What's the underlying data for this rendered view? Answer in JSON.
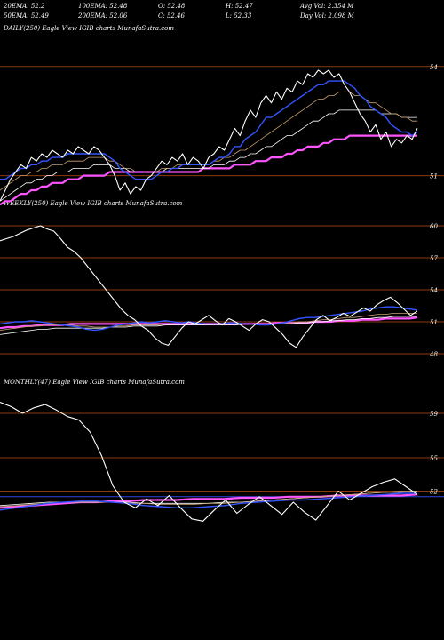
{
  "header": {
    "row1": [
      "20EMA: 52.2",
      "100EMA: 52.48",
      "O: 52.48",
      "H: 52.47",
      "Avg Vol: 2.354  M"
    ],
    "row2": [
      "50EMA: 52.49",
      "200EMA: 52.06",
      "C: 52.46",
      "L: 52.33",
      "Day Vol: 2.098  M"
    ]
  },
  "panels": {
    "daily_label": "DAILY(250) Eagle   View  IGIB charts MunafaSutra.com",
    "weekly_label": "WEEKLY(250) Eagle   View  IGIB charts MunafaSutra.com",
    "monthly_label": "MONTHLY(47) Eagle   View  IGIB charts MunafaSutra.com"
  },
  "colors": {
    "price": "#ffffff",
    "ema_fast": "#3355ff",
    "ema_mid": "#c8a070",
    "ema_slow": "#ffffff",
    "ema_long": "#ff55ff",
    "level_line": "#8b3a10",
    "level_line_blue": "#3344dd"
  },
  "chart_data": [
    {
      "type": "line",
      "name_hint": "daily",
      "ylim": [
        48.5,
        54.8
      ],
      "levels": [
        54,
        51
      ],
      "tick_labels": [
        {
          "value": 54,
          "label": "54"
        },
        {
          "value": 51,
          "label": "51"
        }
      ],
      "price": [
        50.3,
        50.6,
        50.9,
        51.1,
        51.3,
        51.2,
        51.5,
        51.4,
        51.6,
        51.5,
        51.7,
        51.6,
        51.5,
        51.7,
        51.6,
        51.8,
        51.7,
        51.6,
        51.8,
        51.7,
        51.5,
        51.3,
        51.0,
        50.6,
        50.8,
        50.5,
        50.7,
        50.6,
        50.9,
        51.0,
        51.2,
        51.4,
        51.3,
        51.5,
        51.4,
        51.6,
        51.3,
        51.5,
        51.4,
        51.2,
        51.5,
        51.6,
        51.8,
        51.7,
        52.0,
        52.3,
        52.1,
        52.5,
        52.8,
        52.6,
        53.0,
        53.2,
        53.0,
        53.3,
        53.1,
        53.4,
        53.3,
        53.6,
        53.5,
        53.8,
        53.7,
        53.9,
        53.8,
        53.9,
        53.7,
        53.8,
        53.5,
        53.3,
        53.0,
        52.7,
        52.5,
        52.2,
        52.4,
        52.0,
        52.2,
        51.8,
        52.0,
        51.9,
        52.1,
        52.0,
        52.3
      ],
      "ema_fast": [
        50.9,
        50.9,
        51.0,
        51.1,
        51.2,
        51.2,
        51.3,
        51.3,
        51.4,
        51.4,
        51.5,
        51.5,
        51.5,
        51.6,
        51.6,
        51.6,
        51.6,
        51.6,
        51.6,
        51.6,
        51.6,
        51.5,
        51.4,
        51.2,
        51.1,
        51.0,
        50.9,
        50.9,
        50.9,
        50.9,
        51.0,
        51.1,
        51.1,
        51.2,
        51.2,
        51.3,
        51.3,
        51.3,
        51.3,
        51.3,
        51.3,
        51.4,
        51.5,
        51.5,
        51.6,
        51.8,
        51.8,
        52.0,
        52.1,
        52.2,
        52.4,
        52.6,
        52.6,
        52.7,
        52.8,
        52.9,
        53.0,
        53.1,
        53.2,
        53.3,
        53.4,
        53.5,
        53.5,
        53.6,
        53.6,
        53.6,
        53.6,
        53.5,
        53.4,
        53.2,
        53.1,
        52.9,
        52.8,
        52.7,
        52.6,
        52.4,
        52.3,
        52.2,
        52.2,
        52.1,
        52.2
      ],
      "ema_mid": [
        50.6,
        50.7,
        50.8,
        50.9,
        51.0,
        51.0,
        51.1,
        51.1,
        51.2,
        51.2,
        51.3,
        51.3,
        51.3,
        51.4,
        51.4,
        51.4,
        51.4,
        51.5,
        51.5,
        51.5,
        51.5,
        51.4,
        51.4,
        51.3,
        51.2,
        51.2,
        51.1,
        51.1,
        51.1,
        51.1,
        51.1,
        51.2,
        51.2,
        51.2,
        51.3,
        51.3,
        51.3,
        51.3,
        51.3,
        51.3,
        51.3,
        51.4,
        51.4,
        51.5,
        51.5,
        51.6,
        51.7,
        51.7,
        51.8,
        51.9,
        52.0,
        52.1,
        52.2,
        52.3,
        52.4,
        52.5,
        52.6,
        52.7,
        52.8,
        52.9,
        53.0,
        53.1,
        53.1,
        53.2,
        53.2,
        53.3,
        53.3,
        53.3,
        53.2,
        53.2,
        53.1,
        53.0,
        53.0,
        52.9,
        52.8,
        52.7,
        52.7,
        52.6,
        52.6,
        52.5,
        52.5
      ],
      "ema_slow": [
        50.3,
        50.4,
        50.5,
        50.6,
        50.7,
        50.8,
        50.8,
        50.9,
        50.9,
        51.0,
        51.0,
        51.1,
        51.1,
        51.1,
        51.2,
        51.2,
        51.2,
        51.2,
        51.3,
        51.3,
        51.3,
        51.3,
        51.2,
        51.2,
        51.2,
        51.1,
        51.1,
        51.1,
        51.1,
        51.1,
        51.1,
        51.1,
        51.2,
        51.2,
        51.2,
        51.2,
        51.2,
        51.2,
        51.2,
        51.2,
        51.2,
        51.3,
        51.3,
        51.3,
        51.4,
        51.4,
        51.5,
        51.5,
        51.6,
        51.6,
        51.7,
        51.8,
        51.8,
        51.9,
        52.0,
        52.1,
        52.1,
        52.2,
        52.3,
        52.4,
        52.5,
        52.5,
        52.6,
        52.7,
        52.7,
        52.8,
        52.8,
        52.8,
        52.8,
        52.8,
        52.8,
        52.8,
        52.8,
        52.7,
        52.7,
        52.7,
        52.7,
        52.6,
        52.6,
        52.6,
        52.6
      ],
      "ema_long": [
        50.2,
        50.3,
        50.3,
        50.4,
        50.5,
        50.5,
        50.6,
        50.6,
        50.7,
        50.7,
        50.8,
        50.8,
        50.8,
        50.9,
        50.9,
        50.9,
        51.0,
        51.0,
        51.0,
        51.0,
        51.0,
        51.1,
        51.1,
        51.1,
        51.1,
        51.1,
        51.1,
        51.1,
        51.1,
        51.1,
        51.1,
        51.1,
        51.1,
        51.1,
        51.1,
        51.1,
        51.1,
        51.1,
        51.1,
        51.2,
        51.2,
        51.2,
        51.2,
        51.2,
        51.2,
        51.3,
        51.3,
        51.3,
        51.3,
        51.4,
        51.4,
        51.4,
        51.5,
        51.5,
        51.5,
        51.6,
        51.6,
        51.7,
        51.7,
        51.8,
        51.8,
        51.8,
        51.9,
        51.9,
        52.0,
        52.0,
        52.0,
        52.1,
        52.1,
        52.1,
        52.1,
        52.1,
        52.1,
        52.1,
        52.1,
        52.1,
        52.1,
        52.1,
        52.1,
        52.1,
        52.1
      ]
    },
    {
      "type": "line",
      "name_hint": "weekly",
      "ylim": [
        47,
        61.5
      ],
      "levels": [
        60,
        57,
        54,
        51,
        48
      ],
      "tick_labels": [
        {
          "value": 60,
          "label": "60"
        },
        {
          "value": 57,
          "label": "57"
        },
        {
          "value": 54,
          "label": "54"
        },
        {
          "value": 51,
          "label": "51"
        },
        {
          "value": 48,
          "label": "48"
        }
      ],
      "price": [
        58.6,
        58.8,
        59.0,
        59.3,
        59.6,
        59.8,
        60.0,
        59.7,
        59.5,
        58.8,
        58.0,
        57.6,
        57.0,
        56.2,
        55.4,
        54.6,
        53.8,
        53.0,
        52.2,
        51.6,
        51.2,
        50.6,
        50.2,
        49.5,
        49.0,
        48.8,
        49.6,
        50.4,
        51.0,
        50.8,
        51.2,
        51.6,
        51.1,
        50.7,
        51.3,
        51.0,
        50.6,
        50.2,
        50.8,
        51.2,
        51.0,
        50.4,
        49.8,
        49.0,
        48.6,
        49.6,
        50.4,
        51.2,
        51.6,
        51.1,
        51.4,
        51.8,
        51.5,
        51.9,
        52.3,
        52.0,
        52.6,
        53.0,
        53.3,
        52.8,
        52.2,
        51.6,
        52.0
      ],
      "ema_fast": [
        50.8,
        50.9,
        51.0,
        51.0,
        51.1,
        51.0,
        50.9,
        50.8,
        50.7,
        50.6,
        50.5,
        50.3,
        50.2,
        50.3,
        50.5,
        50.7,
        50.8,
        50.9,
        51.0,
        50.9,
        51.0,
        51.1,
        51.0,
        50.9,
        51.0,
        50.9,
        50.8,
        50.8,
        50.8,
        50.9,
        50.9,
        50.8,
        50.8,
        50.7,
        50.7,
        50.8,
        50.9,
        51.1,
        51.3,
        51.4,
        51.4,
        51.5,
        51.6,
        51.7,
        51.8,
        51.9,
        52.0,
        52.2,
        52.3,
        52.4,
        52.4,
        52.3,
        52.2,
        52.1
      ],
      "ema_mid": [
        50.2,
        50.3,
        50.4,
        50.5,
        50.6,
        50.6,
        50.7,
        50.7,
        50.7,
        50.7,
        50.6,
        50.6,
        50.5,
        50.5,
        50.5,
        50.6,
        50.6,
        50.7,
        50.7,
        50.7,
        50.7,
        50.8,
        50.8,
        50.8,
        50.8,
        50.8,
        50.8,
        50.8,
        50.8,
        50.8,
        50.8,
        50.8,
        50.8,
        50.8,
        50.8,
        50.8,
        50.8,
        50.9,
        51.0,
        51.0,
        51.1,
        51.2,
        51.2,
        51.3,
        51.4,
        51.4,
        51.5,
        51.6,
        51.7,
        51.7,
        51.8,
        51.8,
        51.8,
        51.8
      ],
      "ema_slow": [
        49.8,
        49.9,
        50.0,
        50.1,
        50.2,
        50.3,
        50.3,
        50.4,
        50.4,
        50.4,
        50.4,
        50.4,
        50.4,
        50.4,
        50.5,
        50.5,
        50.5,
        50.6,
        50.6,
        50.6,
        50.6,
        50.7,
        50.7,
        50.7,
        50.7,
        50.7,
        50.7,
        50.7,
        50.7,
        50.7,
        50.7,
        50.8,
        50.8,
        50.8,
        50.8,
        50.8,
        50.8,
        50.8,
        50.9,
        50.9,
        51.0,
        51.0,
        51.1,
        51.1,
        51.2,
        51.2,
        51.3,
        51.3,
        51.4,
        51.4,
        51.5,
        51.5,
        51.5,
        51.5
      ],
      "ema_long": [
        50.4,
        50.5,
        50.5,
        50.6,
        50.6,
        50.7,
        50.7,
        50.7,
        50.7,
        50.8,
        50.8,
        50.8,
        50.8,
        50.8,
        50.8,
        50.8,
        50.8,
        50.8,
        50.8,
        50.8,
        50.8,
        50.8,
        50.8,
        50.8,
        50.8,
        50.8,
        50.8,
        50.8,
        50.8,
        50.8,
        50.8,
        50.8,
        50.8,
        50.8,
        50.8,
        50.9,
        50.9,
        50.9,
        50.9,
        50.9,
        51.0,
        51.0,
        51.0,
        51.1,
        51.1,
        51.1,
        51.2,
        51.2,
        51.2,
        51.3,
        51.3,
        51.3,
        51.3,
        51.4
      ]
    },
    {
      "type": "line",
      "name_hint": "monthly",
      "ylim": [
        47,
        61
      ],
      "levels": [
        59,
        55,
        52,
        51.5
      ],
      "tick_labels": [
        {
          "value": 59,
          "label": "59"
        },
        {
          "value": 55,
          "label": "55"
        },
        {
          "value": 52,
          "label": "52"
        }
      ],
      "price": [
        60.0,
        59.6,
        59.0,
        59.5,
        59.8,
        59.3,
        58.7,
        58.4,
        57.3,
        55.2,
        52.5,
        51.0,
        50.5,
        51.3,
        50.7,
        51.6,
        50.5,
        49.5,
        49.3,
        50.3,
        51.2,
        50.0,
        50.8,
        51.5,
        50.7,
        49.9,
        51.0,
        50.1,
        49.4,
        50.7,
        52.0,
        51.2,
        51.8,
        52.4,
        52.8,
        53.1,
        52.4,
        51.7
      ],
      "ema_fast": [
        50.3,
        50.5,
        50.7,
        50.9,
        51.0,
        51.1,
        51.1,
        51.0,
        50.9,
        50.7,
        50.6,
        50.5,
        50.5,
        50.6,
        50.7,
        50.9,
        51.0,
        51.1,
        51.2,
        51.2,
        51.3,
        51.4,
        51.5,
        51.6,
        51.7,
        51.8,
        51.8
      ],
      "ema_mid": [
        50.6,
        50.7,
        50.8,
        50.9,
        51.0,
        51.0,
        51.0,
        51.0,
        50.9,
        50.9,
        50.8,
        50.8,
        50.8,
        50.9,
        50.9,
        51.0,
        51.1,
        51.2,
        51.3,
        51.4,
        51.5,
        51.6,
        51.7,
        51.8,
        51.9,
        52.0,
        52.0
      ],
      "ema_slow": [
        50.7,
        50.8,
        50.9,
        51.0,
        51.0,
        51.0,
        51.0,
        51.0,
        51.0,
        50.9,
        50.9,
        50.9,
        50.9,
        50.9,
        51.0,
        51.0,
        51.1,
        51.2,
        51.3,
        51.4,
        51.5,
        51.6,
        51.7,
        51.8,
        51.9,
        51.9,
        52.0
      ],
      "ema_long": [
        50.5,
        50.6,
        50.7,
        50.8,
        50.9,
        51.0,
        51.0,
        51.1,
        51.1,
        51.2,
        51.2,
        51.2,
        51.3,
        51.3,
        51.3,
        51.4,
        51.4,
        51.4,
        51.5,
        51.5,
        51.5,
        51.6,
        51.6,
        51.6,
        51.6,
        51.6,
        51.7
      ]
    }
  ]
}
